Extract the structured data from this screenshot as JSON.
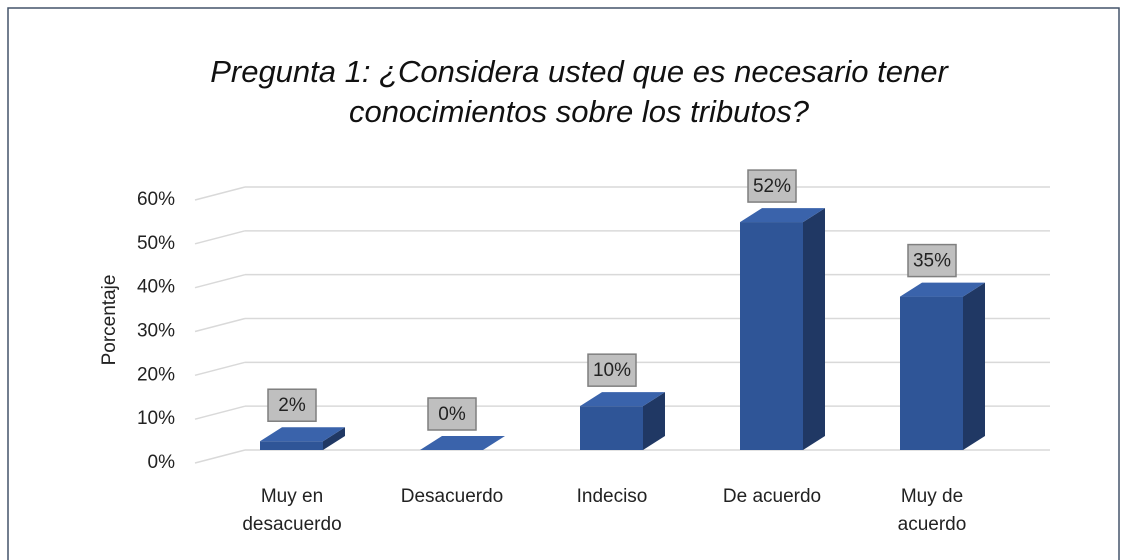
{
  "chart_data": {
    "type": "bar3d",
    "title": "Pregunta 1: ¿Considera usted que es necesario tener conocimientos sobre los tributos?",
    "y_label": "Porcentaje",
    "categories": [
      "Muy en desacuerdo",
      "Desacuerdo",
      "Indeciso",
      "De acuerdo",
      "Muy de acuerdo"
    ],
    "values": [
      2,
      0,
      10,
      52,
      35
    ],
    "value_labels": [
      "2%",
      "0%",
      "10%",
      "52%",
      "35%"
    ],
    "color": "#2f5597",
    "ylim": [
      0,
      60
    ],
    "yticks": [
      {
        "value": 0,
        "label": "0%"
      },
      {
        "value": 10,
        "label": "10%"
      },
      {
        "value": 20,
        "label": "20%"
      },
      {
        "value": 30,
        "label": "30%"
      },
      {
        "value": 40,
        "label": "40%"
      },
      {
        "value": 50,
        "label": "50%"
      },
      {
        "value": 60,
        "label": "60%"
      }
    ],
    "grid": true
  }
}
